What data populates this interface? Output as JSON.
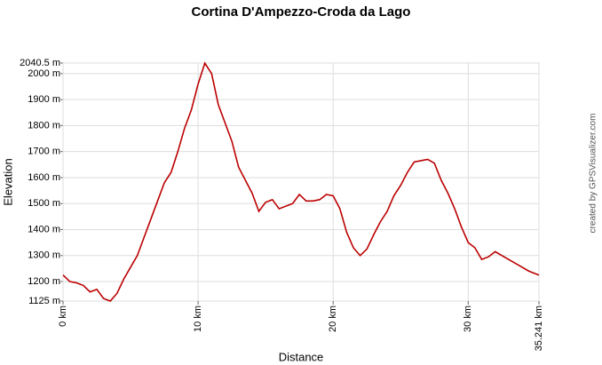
{
  "chart_data": {
    "type": "line",
    "title": "Cortina D'Ampezzo-Croda da Lago",
    "xlabel": "Distance",
    "ylabel": "Elevation",
    "credit": "created by GPSVisualizer.com",
    "color": "#bb0000",
    "grid": true,
    "x": [
      0,
      0.5,
      1,
      1.5,
      2,
      2.5,
      3,
      3.5,
      4,
      4.5,
      5,
      5.5,
      6,
      6.5,
      7,
      7.5,
      8,
      8.5,
      9,
      9.5,
      10,
      10.5,
      11,
      11.5,
      12,
      12.5,
      13,
      13.5,
      14,
      14.5,
      15,
      15.5,
      16,
      16.5,
      17,
      17.5,
      18,
      18.5,
      19,
      19.5,
      20,
      20.5,
      21,
      21.5,
      22,
      22.5,
      23,
      23.5,
      24,
      24.5,
      25,
      25.5,
      26,
      26.5,
      27,
      27.5,
      28,
      28.5,
      29,
      29.5,
      30,
      30.5,
      31,
      31.5,
      32,
      32.5,
      33,
      33.5,
      34,
      34.5,
      35.241
    ],
    "values": [
      1225,
      1200,
      1195,
      1185,
      1160,
      1170,
      1135,
      1125,
      1155,
      1210,
      1255,
      1300,
      1370,
      1440,
      1510,
      1580,
      1620,
      1700,
      1790,
      1860,
      1960,
      2040,
      2000,
      1880,
      1810,
      1740,
      1640,
      1590,
      1540,
      1470,
      1505,
      1515,
      1480,
      1490,
      1500,
      1535,
      1510,
      1510,
      1515,
      1535,
      1530,
      1480,
      1390,
      1330,
      1300,
      1325,
      1380,
      1430,
      1470,
      1530,
      1570,
      1620,
      1660,
      1665,
      1670,
      1655,
      1590,
      1540,
      1480,
      1410,
      1350,
      1330,
      1285,
      1295,
      1315,
      1300,
      1285,
      1270,
      1255,
      1240,
      1225
    ],
    "xlim": [
      0,
      35.241
    ],
    "xticks": [
      {
        "value": 0,
        "label": "0 km"
      },
      {
        "value": 10,
        "label": "10 km"
      },
      {
        "value": 20,
        "label": "20 km"
      },
      {
        "value": 30,
        "label": "30 km"
      },
      {
        "value": 35.241,
        "label": "35.241 km"
      }
    ],
    "ylim": [
      1125,
      2040.5
    ],
    "yticks": [
      {
        "value": 1125,
        "label": "1125 m"
      },
      {
        "value": 1200,
        "label": "1200 m"
      },
      {
        "value": 1300,
        "label": "1300 m"
      },
      {
        "value": 1400,
        "label": "1400 m"
      },
      {
        "value": 1500,
        "label": "1500 m"
      },
      {
        "value": 1600,
        "label": "1600 m"
      },
      {
        "value": 1700,
        "label": "1700 m"
      },
      {
        "value": 1800,
        "label": "1800 m"
      },
      {
        "value": 1900,
        "label": "1900 m"
      },
      {
        "value": 2000,
        "label": "2000 m"
      },
      {
        "value": 2040.5,
        "label": "2040.5 m"
      }
    ]
  }
}
